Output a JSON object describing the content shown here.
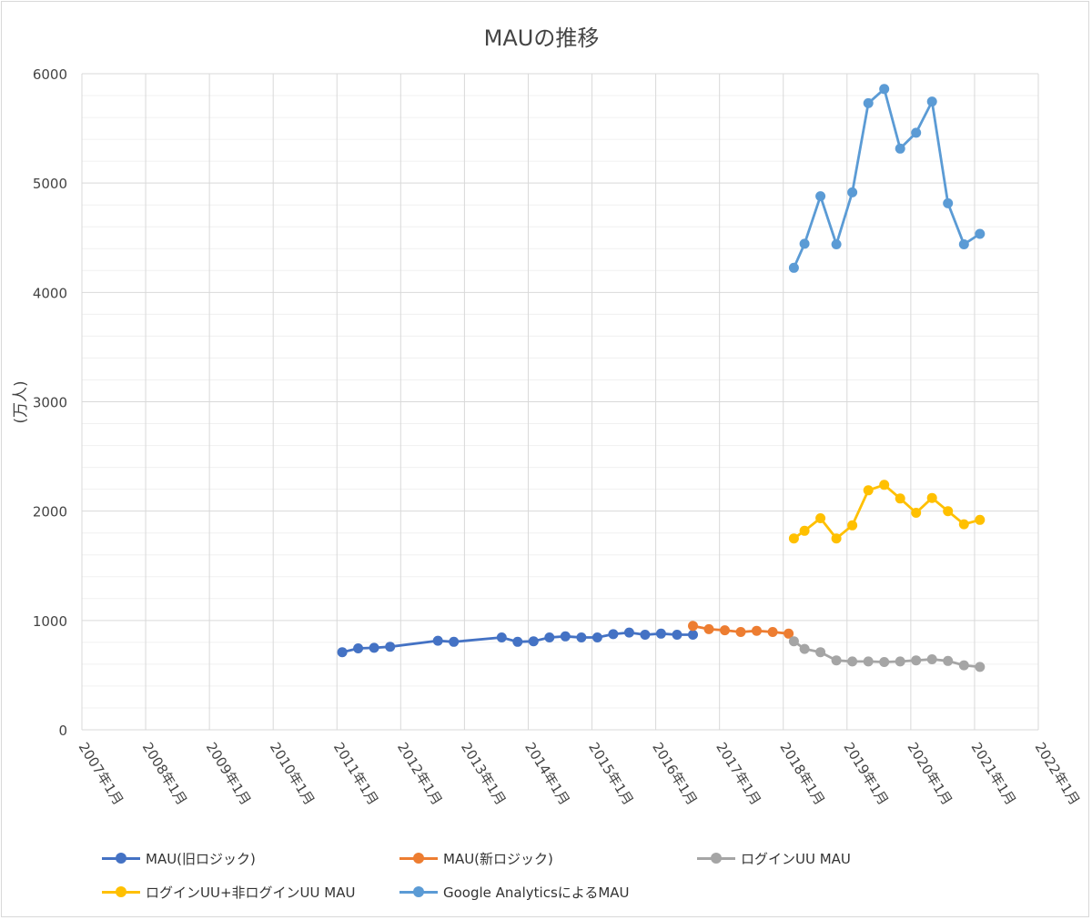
{
  "chart_data": {
    "type": "line",
    "title": "MAUの推移",
    "ylabel": "(万人)",
    "xlabel": "",
    "ylim": [
      0,
      6000
    ],
    "yticks": [
      0,
      1000,
      2000,
      3000,
      4000,
      5000,
      6000
    ],
    "x_range": [
      "2007-01",
      "2022-01"
    ],
    "xticks": [
      "2007年1月",
      "2008年1月",
      "2009年1月",
      "2010年1月",
      "2011年1月",
      "2012年1月",
      "2013年1月",
      "2014年1月",
      "2015年1月",
      "2016年1月",
      "2017年1月",
      "2018年1月",
      "2019年1月",
      "2020年1月",
      "2021年1月",
      "2022年1月"
    ],
    "grid": true,
    "legend_position": "bottom",
    "series": [
      {
        "name": "MAU(旧ロジック)",
        "color": "#4472C4",
        "points": [
          [
            "2011-02",
            710
          ],
          [
            "2011-05",
            745
          ],
          [
            "2011-08",
            750
          ],
          [
            "2011-11",
            760
          ],
          [
            "2012-08",
            815
          ],
          [
            "2012-11",
            805
          ],
          [
            "2013-08",
            845
          ],
          [
            "2013-11",
            805
          ],
          [
            "2014-02",
            810
          ],
          [
            "2014-05",
            845
          ],
          [
            "2014-08",
            855
          ],
          [
            "2014-11",
            845
          ],
          [
            "2015-02",
            845
          ],
          [
            "2015-05",
            875
          ],
          [
            "2015-08",
            890
          ],
          [
            "2015-11",
            870
          ],
          [
            "2016-02",
            880
          ],
          [
            "2016-05",
            870
          ],
          [
            "2016-08",
            870
          ]
        ]
      },
      {
        "name": "MAU(新ロジック)",
        "color": "#ED7D31",
        "points": [
          [
            "2016-08",
            950
          ],
          [
            "2016-11",
            920
          ],
          [
            "2017-02",
            910
          ],
          [
            "2017-05",
            895
          ],
          [
            "2017-08",
            905
          ],
          [
            "2017-11",
            895
          ],
          [
            "2018-02",
            880
          ]
        ]
      },
      {
        "name": "ログインUU MAU",
        "color": "#A5A5A5",
        "points": [
          [
            "2018-03",
            810
          ],
          [
            "2018-05",
            740
          ],
          [
            "2018-08",
            710
          ],
          [
            "2018-11",
            635
          ],
          [
            "2019-02",
            625
          ],
          [
            "2019-05",
            625
          ],
          [
            "2019-08",
            620
          ],
          [
            "2019-11",
            625
          ],
          [
            "2020-02",
            635
          ],
          [
            "2020-05",
            645
          ],
          [
            "2020-08",
            630
          ],
          [
            "2020-11",
            590
          ],
          [
            "2021-02",
            575
          ]
        ]
      },
      {
        "name": "ログインUU+非ログインUU MAU",
        "color": "#FFC000",
        "points": [
          [
            "2018-03",
            1750
          ],
          [
            "2018-05",
            1820
          ],
          [
            "2018-08",
            1935
          ],
          [
            "2018-11",
            1750
          ],
          [
            "2019-02",
            1870
          ],
          [
            "2019-05",
            2190
          ],
          [
            "2019-08",
            2240
          ],
          [
            "2019-11",
            2115
          ],
          [
            "2020-02",
            1985
          ],
          [
            "2020-05",
            2120
          ],
          [
            "2020-08",
            2000
          ],
          [
            "2020-11",
            1880
          ],
          [
            "2021-02",
            1920
          ]
        ]
      },
      {
        "name": "Google AnalyticsによるMAU",
        "color": "#5B9BD5",
        "points": [
          [
            "2018-03",
            4225
          ],
          [
            "2018-05",
            4445
          ],
          [
            "2018-08",
            4880
          ],
          [
            "2018-11",
            4440
          ],
          [
            "2019-02",
            4915
          ],
          [
            "2019-05",
            5730
          ],
          [
            "2019-08",
            5860
          ],
          [
            "2019-11",
            5315
          ],
          [
            "2020-02",
            5460
          ],
          [
            "2020-05",
            5745
          ],
          [
            "2020-08",
            4815
          ],
          [
            "2020-11",
            4440
          ],
          [
            "2021-02",
            4535
          ]
        ]
      }
    ]
  }
}
